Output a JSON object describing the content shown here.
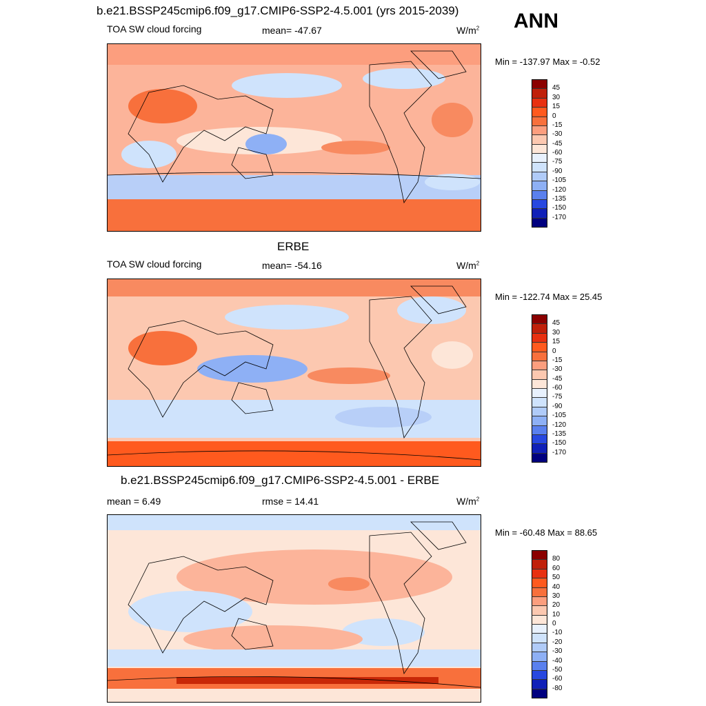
{
  "colors": {
    "dark_red": "#8b0000",
    "orange_red": "#ff5a1e",
    "light_orange": "#fcb49a",
    "pale": "#fde6d8",
    "light_blue": "#cfe3fc",
    "mid_blue": "#8eb0f5",
    "blue": "#2848e0",
    "navy": "#00007f"
  },
  "header": {
    "title": "b.e21.BSSP245cmip6.f09_g17.CMIP6-SSP2-4.5.001 (yrs 2015-2039)",
    "season": "ANN"
  },
  "panels": [
    {
      "title": "",
      "left_label": "TOA SW cloud forcing",
      "center_label": "mean= -47.67",
      "units": "W/m",
      "units_sup": "2",
      "minmax": "Min = -137.97 Max =  -0.52",
      "colorbar_ticks": [
        "45",
        "30",
        "15",
        "0",
        "-15",
        "-30",
        "-45",
        "-60",
        "-75",
        "-90",
        "-105",
        "-120",
        "-135",
        "-150",
        "-170"
      ]
    },
    {
      "title": "ERBE",
      "left_label": "TOA SW cloud forcing",
      "center_label": "mean= -54.16",
      "units": "W/m",
      "units_sup": "2",
      "minmax": "Min = -122.74 Max =  25.45",
      "colorbar_ticks": [
        "45",
        "30",
        "15",
        "0",
        "-15",
        "-30",
        "-45",
        "-60",
        "-75",
        "-90",
        "-105",
        "-120",
        "-135",
        "-150",
        "-170"
      ]
    },
    {
      "title": "b.e21.BSSP245cmip6.f09_g17.CMIP6-SSP2-4.5.001 - ERBE",
      "left_label": "mean =   6.49",
      "center_label": "rmse =  14.41",
      "units": "W/m",
      "units_sup": "2",
      "minmax": "Min = -60.48 Max =  88.65",
      "colorbar_ticks": [
        "80",
        "60",
        "50",
        "40",
        "30",
        "20",
        "10",
        "0",
        "-10",
        "-20",
        "-30",
        "-40",
        "-50",
        "-60",
        "-80"
      ]
    }
  ]
}
